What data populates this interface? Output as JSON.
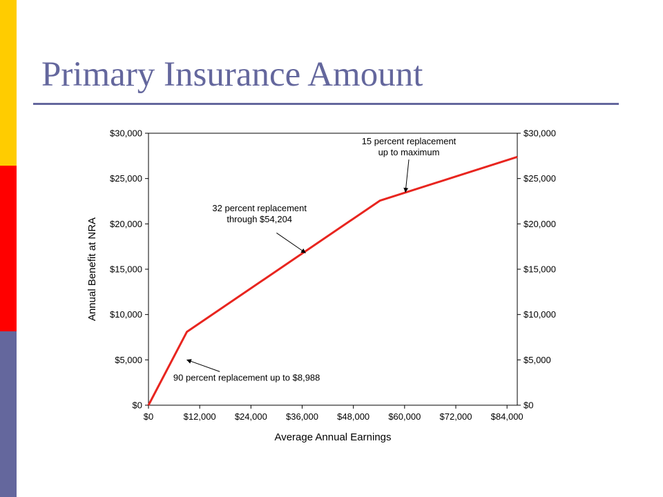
{
  "slide": {
    "title": "Primary Insurance Amount",
    "accent_colors": [
      "#ffcc00",
      "#ff0000",
      "#64679d"
    ],
    "title_color": "#64679d",
    "rule_color": "#64679d"
  },
  "chart_data": {
    "type": "line",
    "title": "",
    "xlabel": "Average Annual Earnings",
    "ylabel": "Annual Benefit at NRA",
    "xlim": [
      0,
      86400
    ],
    "ylim": [
      0,
      30000
    ],
    "x_ticks": [
      0,
      12000,
      24000,
      36000,
      48000,
      60000,
      72000,
      84000
    ],
    "x_tick_labels": [
      "$0",
      "$12,000",
      "$24,000",
      "$36,000",
      "$48,000",
      "$60,000",
      "$72,000",
      "$84,000"
    ],
    "y_ticks": [
      0,
      5000,
      10000,
      15000,
      20000,
      25000,
      30000
    ],
    "y_tick_labels": [
      "$0",
      "$5,000",
      "$10,000",
      "$15,000",
      "$20,000",
      "$25,000",
      "$30,000"
    ],
    "secondary_y_axis": true,
    "grid": false,
    "legend": "none",
    "series": [
      {
        "color": "#e8251f",
        "x": [
          0,
          8988,
          54204,
          86400
        ],
        "y": [
          0,
          8089,
          22559,
          27388
        ]
      }
    ],
    "annotations": [
      {
        "lines": [
          "15 percent replacement",
          "up to maximum"
        ],
        "text_x": 61000,
        "text_y": 28800,
        "arrow_from": [
          61000,
          27100
        ],
        "arrow_to": [
          60200,
          23500
        ]
      },
      {
        "lines": [
          "32 percent replacement",
          "through $54,204"
        ],
        "text_x": 26000,
        "text_y": 21400,
        "arrow_from": [
          30000,
          19000
        ],
        "arrow_to": [
          36800,
          16800
        ]
      },
      {
        "lines": [
          "90 percent replacement up to $8,988"
        ],
        "text_x": 23000,
        "text_y": 2700,
        "arrow_from": [
          16700,
          3700
        ],
        "arrow_to": [
          9000,
          5000
        ]
      }
    ]
  }
}
